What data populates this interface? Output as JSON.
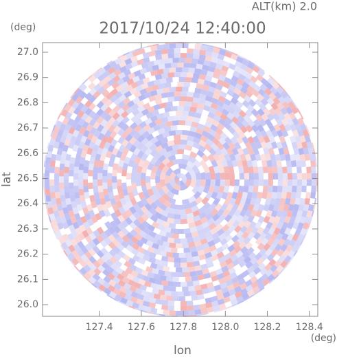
{
  "chart_data": {
    "type": "radar-ppi",
    "title": "2017/10/24 12:40:00",
    "altitude_label": "ALT(km)  2.0",
    "y_unit": "(deg)",
    "x_unit": "(deg)",
    "xlabel": "lon",
    "ylabel": "lat",
    "xlim": [
      127.13,
      128.44
    ],
    "ylim": [
      25.954,
      27.038
    ],
    "xticks": [
      127.4,
      127.6,
      127.8,
      {
        "value": 128.0,
        "label": "128.0"
      },
      128.2,
      128.4
    ],
    "yticks": [
      {
        "value": 26.0,
        "label": "26.0"
      },
      26.1,
      26.2,
      26.3,
      26.4,
      26.5,
      26.6,
      26.7,
      26.8,
      26.9,
      {
        "value": 27.0,
        "label": "27.0"
      }
    ]
  }
}
